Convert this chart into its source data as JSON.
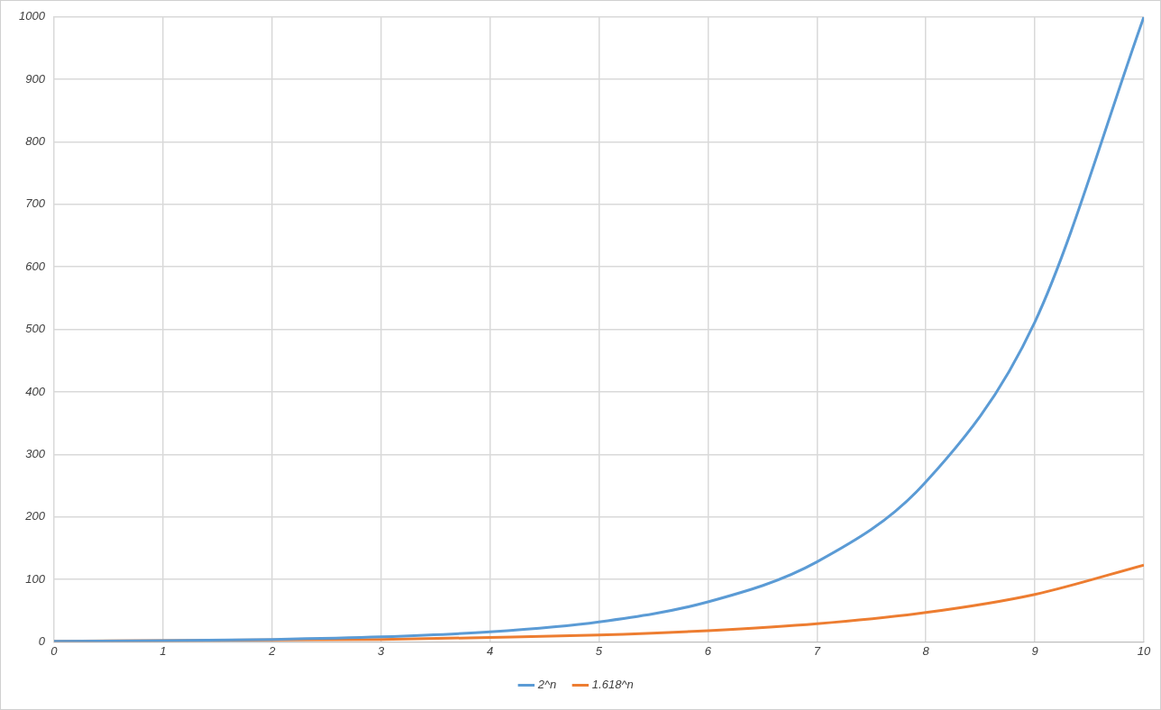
{
  "chart_data": {
    "type": "line",
    "x": [
      0,
      1,
      2,
      3,
      4,
      5,
      6,
      7,
      8,
      9,
      10
    ],
    "series": [
      {
        "name": "2^n",
        "color": "#5b9bd5",
        "values": [
          1,
          2,
          4,
          8,
          16,
          32,
          64,
          128,
          256,
          512,
          1000
        ]
      },
      {
        "name": "1.618^n",
        "color": "#ed7d31",
        "values": [
          1,
          2,
          3,
          4,
          7,
          11,
          18,
          29,
          47,
          76,
          123
        ]
      }
    ],
    "xlim": [
      0,
      10
    ],
    "xticks": [
      0,
      1,
      2,
      3,
      4,
      5,
      6,
      7,
      8,
      9,
      10
    ],
    "ylim": [
      0,
      1000
    ],
    "yticks": [
      0,
      100,
      200,
      300,
      400,
      500,
      600,
      700,
      800,
      900,
      1000
    ],
    "grid": true,
    "legend": "bottom",
    "marker": "none",
    "line_style": "solid"
  }
}
